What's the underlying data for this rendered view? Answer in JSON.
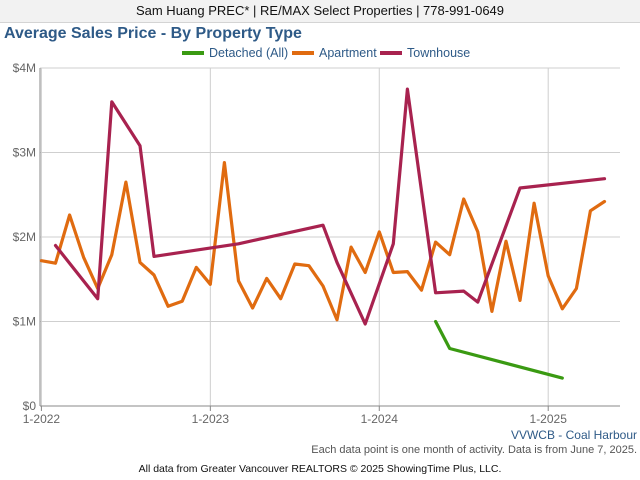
{
  "header": {
    "text": "Sam Huang PREC* | RE/MAX Select Properties | 778-991-0649"
  },
  "footer": {
    "region": "VVWCB - Coal Harbour",
    "note": "Each data point is one month of activity. Data is from June 7, 2025.",
    "source": "All data from Greater Vancouver REALTORS © 2025 ShowingTime Plus, LLC."
  },
  "chart_data": {
    "type": "line",
    "title": "Average Sales Price - By Property Type",
    "xlabel": "",
    "ylabel": "",
    "x_ticks": [
      "1-2022",
      "1-2023",
      "1-2024",
      "1-2025"
    ],
    "y_ticks": [
      "$0",
      "$1M",
      "$2M",
      "$3M",
      "$4M"
    ],
    "ylim": [
      0,
      4000000
    ],
    "xlim": [
      "2022-01",
      "2025-06"
    ],
    "grid": true,
    "legend_position": "top",
    "series": [
      {
        "name": "Detached (All)",
        "color": "#3a9a12",
        "points": [
          {
            "x": "2024-05",
            "y": 1000000
          },
          {
            "x": "2024-06",
            "y": 680000
          },
          {
            "x": "2025-02",
            "y": 330000
          }
        ]
      },
      {
        "name": "Apartment",
        "color": "#e06b10",
        "points": [
          {
            "x": "2022-01",
            "y": 1720000
          },
          {
            "x": "2022-02",
            "y": 1690000
          },
          {
            "x": "2022-03",
            "y": 2260000
          },
          {
            "x": "2022-04",
            "y": 1760000
          },
          {
            "x": "2022-05",
            "y": 1390000
          },
          {
            "x": "2022-06",
            "y": 1790000
          },
          {
            "x": "2022-07",
            "y": 2650000
          },
          {
            "x": "2022-08",
            "y": 1700000
          },
          {
            "x": "2022-09",
            "y": 1550000
          },
          {
            "x": "2022-10",
            "y": 1180000
          },
          {
            "x": "2022-11",
            "y": 1240000
          },
          {
            "x": "2022-12",
            "y": 1640000
          },
          {
            "x": "2023-01",
            "y": 1440000
          },
          {
            "x": "2023-02",
            "y": 2880000
          },
          {
            "x": "2023-03",
            "y": 1480000
          },
          {
            "x": "2023-04",
            "y": 1160000
          },
          {
            "x": "2023-05",
            "y": 1510000
          },
          {
            "x": "2023-06",
            "y": 1270000
          },
          {
            "x": "2023-07",
            "y": 1680000
          },
          {
            "x": "2023-08",
            "y": 1660000
          },
          {
            "x": "2023-09",
            "y": 1420000
          },
          {
            "x": "2023-10",
            "y": 1020000
          },
          {
            "x": "2023-11",
            "y": 1880000
          },
          {
            "x": "2023-12",
            "y": 1580000
          },
          {
            "x": "2024-01",
            "y": 2060000
          },
          {
            "x": "2024-02",
            "y": 1580000
          },
          {
            "x": "2024-03",
            "y": 1590000
          },
          {
            "x": "2024-04",
            "y": 1370000
          },
          {
            "x": "2024-05",
            "y": 1940000
          },
          {
            "x": "2024-06",
            "y": 1790000
          },
          {
            "x": "2024-07",
            "y": 2450000
          },
          {
            "x": "2024-08",
            "y": 2060000
          },
          {
            "x": "2024-09",
            "y": 1120000
          },
          {
            "x": "2024-10",
            "y": 1950000
          },
          {
            "x": "2024-11",
            "y": 1250000
          },
          {
            "x": "2024-12",
            "y": 2400000
          },
          {
            "x": "2025-01",
            "y": 1540000
          },
          {
            "x": "2025-02",
            "y": 1150000
          },
          {
            "x": "2025-03",
            "y": 1390000
          },
          {
            "x": "2025-04",
            "y": 2310000
          },
          {
            "x": "2025-05",
            "y": 2420000
          }
        ]
      },
      {
        "name": "Townhouse",
        "color": "#a8224f",
        "points": [
          {
            "x": "2022-02",
            "y": 1900000
          },
          {
            "x": "2022-05",
            "y": 1270000
          },
          {
            "x": "2022-06",
            "y": 3600000
          },
          {
            "x": "2022-08",
            "y": 3080000
          },
          {
            "x": "2022-09",
            "y": 1770000
          },
          {
            "x": "2023-03",
            "y": 1920000
          },
          {
            "x": "2023-09",
            "y": 2140000
          },
          {
            "x": "2023-10",
            "y": 1700000
          },
          {
            "x": "2023-12",
            "y": 970000
          },
          {
            "x": "2024-02",
            "y": 1920000
          },
          {
            "x": "2024-03",
            "y": 3750000
          },
          {
            "x": "2024-05",
            "y": 1340000
          },
          {
            "x": "2024-07",
            "y": 1360000
          },
          {
            "x": "2024-08",
            "y": 1230000
          },
          {
            "x": "2024-11",
            "y": 2580000
          },
          {
            "x": "2025-05",
            "y": 2690000
          }
        ]
      }
    ]
  }
}
